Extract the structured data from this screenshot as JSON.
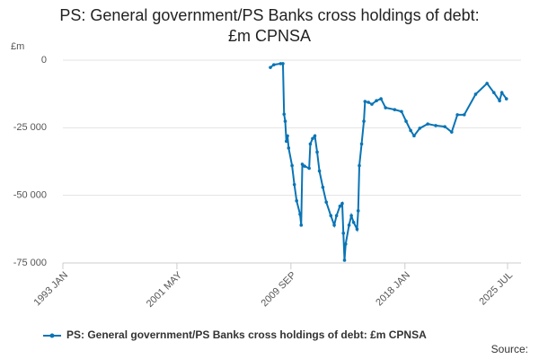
{
  "chart_data": {
    "type": "line",
    "title": "PS: General government/PS Banks cross holdings of debt: £m CPNSA",
    "y_label": "£m",
    "source": "Source:",
    "x": [
      "2008-03",
      "2008-06",
      "2008-12",
      "2009-02",
      "2009-03",
      "2009-04",
      "2009-05",
      "2009-06",
      "2009-07",
      "2009-10",
      "2009-12",
      "2010-02",
      "2010-05",
      "2010-06",
      "2010-07",
      "2010-09",
      "2011-01",
      "2011-02",
      "2011-04",
      "2011-06",
      "2011-08",
      "2011-10",
      "2012-01",
      "2012-04",
      "2012-08",
      "2012-11",
      "2013-01",
      "2013-04",
      "2013-06",
      "2013-07",
      "2013-08",
      "2013-09",
      "2013-12",
      "2014-02",
      "2014-04",
      "2014-07",
      "2014-08",
      "2014-09",
      "2014-11",
      "2015-01",
      "2015-02",
      "2015-05",
      "2015-08",
      "2015-12",
      "2016-04",
      "2016-08",
      "2017-04",
      "2017-10",
      "2018-02",
      "2018-06",
      "2018-09",
      "2019-02",
      "2019-09",
      "2020-04",
      "2020-12",
      "2021-06",
      "2021-11",
      "2022-05",
      "2023-03",
      "2024-01",
      "2024-07",
      "2024-12",
      "2025-02",
      "2025-06"
    ],
    "series": [
      {
        "name": "PS: General government/PS Banks cross holdings of debt: £m CPNSA",
        "color": "#0a74b5",
        "values": [
          -2700,
          -1700,
          -1300,
          -1300,
          -20000,
          -22600,
          -30000,
          -28000,
          -32500,
          -39000,
          -46000,
          -52000,
          -57000,
          -61000,
          -38500,
          -39200,
          -40000,
          -31000,
          -29000,
          -28000,
          -34000,
          -41000,
          -47000,
          -52500,
          -57500,
          -61000,
          -57500,
          -54000,
          -53000,
          -64000,
          -74000,
          -68000,
          -61000,
          -57500,
          -60000,
          -62500,
          -55700,
          -39000,
          -31000,
          -22600,
          -15300,
          -15600,
          -16300,
          -15000,
          -14300,
          -17600,
          -18300,
          -19000,
          -22600,
          -26000,
          -28000,
          -25200,
          -23600,
          -24200,
          -24600,
          -26600,
          -20200,
          -20200,
          -12600,
          -8600,
          -12000,
          -15000,
          -12000,
          -14300
        ]
      }
    ],
    "xlim": [
      "1993-01",
      "2025-07"
    ],
    "xticks": [
      {
        "value": "1993-01",
        "label": "1993 JAN"
      },
      {
        "value": "2001-05",
        "label": "2001 MAY"
      },
      {
        "value": "2009-09",
        "label": "2009 SEP"
      },
      {
        "value": "2018-01",
        "label": "2018 JAN"
      },
      {
        "value": "2025-07",
        "label": "2025 JUL"
      }
    ],
    "ylim": [
      -75000,
      0
    ],
    "yticks": [
      0,
      {
        "value": -25000,
        "label": "-25 000"
      },
      {
        "value": -50000,
        "label": "-50 000"
      },
      {
        "value": -75000,
        "label": "-75 000"
      }
    ],
    "grid": true
  }
}
